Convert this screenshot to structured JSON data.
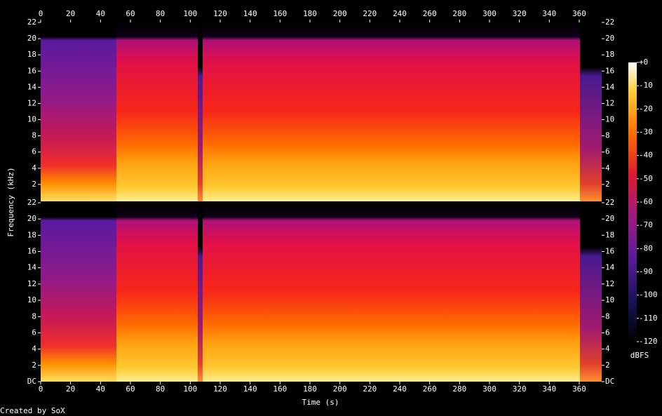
{
  "chart_data": {
    "type": "spectrogram",
    "xlabel": "Time (s)",
    "ylabel": "Frequency (kHz)",
    "credit": "Created by SoX",
    "xlim": [
      0,
      375
    ],
    "xticks": [
      0,
      20,
      40,
      60,
      80,
      100,
      120,
      140,
      160,
      180,
      200,
      220,
      240,
      260,
      280,
      300,
      320,
      340,
      360
    ],
    "channels": [
      {
        "ylim": [
          0,
          22
        ],
        "yticks": [
          2,
          4,
          6,
          8,
          10,
          12,
          14,
          16,
          18,
          20,
          22
        ]
      },
      {
        "ylim": [
          0,
          22
        ],
        "yticks": [
          {
            "value": 0,
            "label": "DC"
          },
          2,
          4,
          6,
          8,
          10,
          12,
          14,
          16,
          18,
          20,
          22
        ]
      }
    ],
    "colorbar": {
      "label": "dBFS",
      "lim": [
        -120,
        0
      ],
      "ticks": [
        {
          "value": 0,
          "label": "+0"
        },
        -10,
        -20,
        -30,
        -40,
        -50,
        -60,
        -70,
        -80,
        -90,
        -100,
        -110,
        -120
      ]
    }
  }
}
